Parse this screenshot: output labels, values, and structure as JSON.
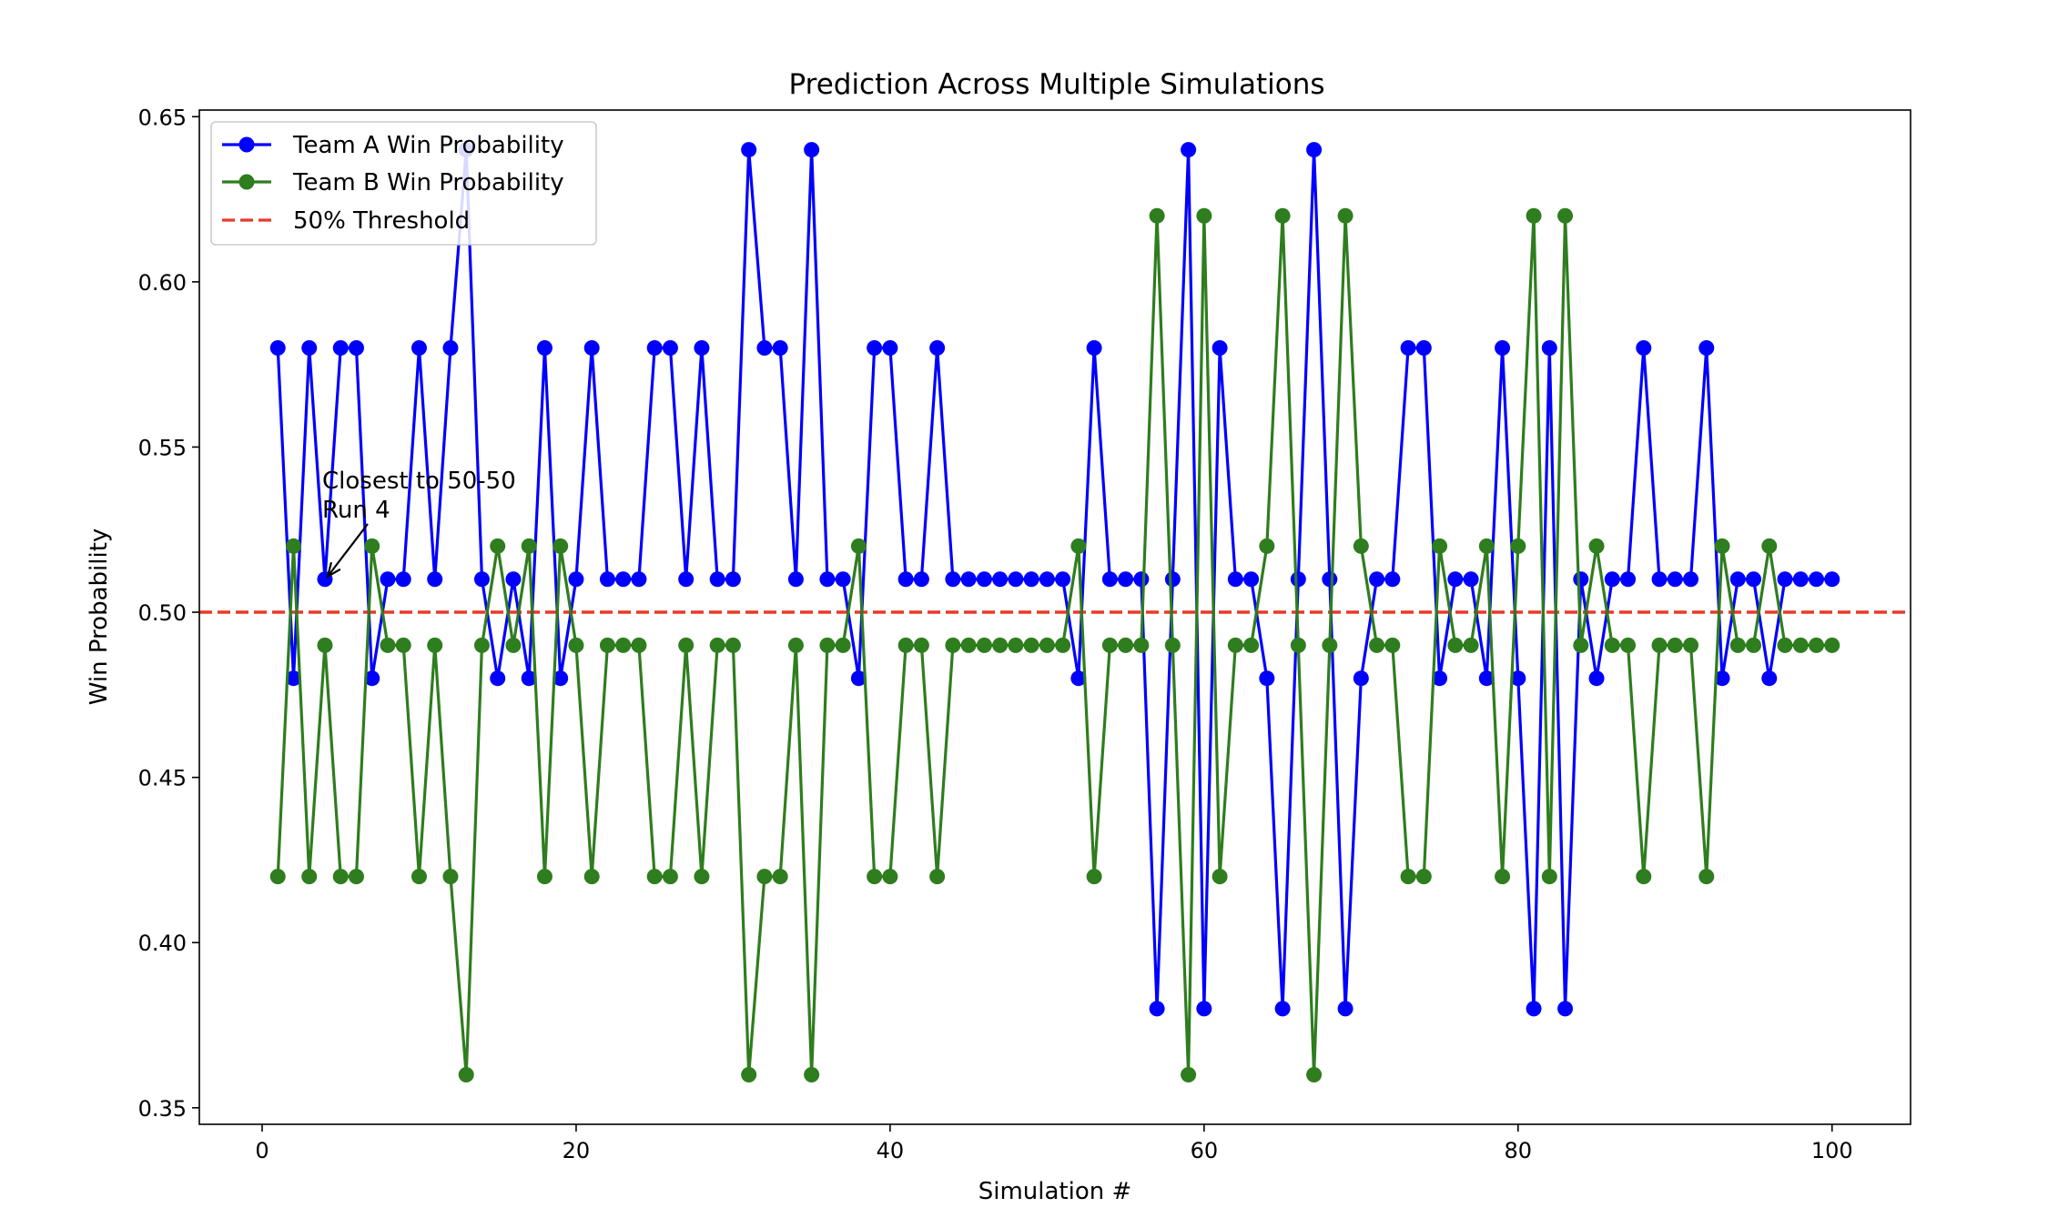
{
  "chart_data": {
    "type": "line",
    "title": "Prediction Across Multiple Simulations",
    "xlabel": "Simulation #",
    "ylabel": "Win Probability",
    "xlim": [
      -4,
      105
    ],
    "ylim": [
      0.345,
      0.652
    ],
    "xticks": [
      0,
      20,
      40,
      60,
      80,
      100
    ],
    "xtick_labels": [
      "0",
      "20",
      "40",
      "60",
      "80",
      "100"
    ],
    "yticks": [
      0.35,
      0.4,
      0.45,
      0.5,
      0.55,
      0.6,
      0.65
    ],
    "ytick_labels": [
      "0.35",
      "0.40",
      "0.45",
      "0.50",
      "0.55",
      "0.60",
      "0.65"
    ],
    "grid": false,
    "legend_position": "top-left",
    "x": [
      1,
      2,
      3,
      4,
      5,
      6,
      7,
      8,
      9,
      10,
      11,
      12,
      13,
      14,
      15,
      16,
      17,
      18,
      19,
      20,
      21,
      22,
      23,
      24,
      25,
      26,
      27,
      28,
      29,
      30,
      31,
      32,
      33,
      34,
      35,
      36,
      37,
      38,
      39,
      40,
      41,
      42,
      43,
      44,
      45,
      46,
      47,
      48,
      49,
      50,
      51,
      52,
      53,
      54,
      55,
      56,
      57,
      58,
      59,
      60,
      61,
      62,
      63,
      64,
      65,
      66,
      67,
      68,
      69,
      70,
      71,
      72,
      73,
      74,
      75,
      76,
      77,
      78,
      79,
      80,
      81,
      82,
      83,
      84,
      85,
      86,
      87,
      88,
      89,
      90,
      91,
      92,
      93,
      94,
      95,
      96,
      97,
      98,
      99,
      100
    ],
    "series": [
      {
        "name": "Team A Win Probability",
        "color": "#0000ff",
        "style": "solid-marker",
        "values": [
          0.58,
          0.48,
          0.58,
          0.51,
          0.58,
          0.58,
          0.48,
          0.51,
          0.51,
          0.58,
          0.51,
          0.58,
          0.64,
          0.51,
          0.48,
          0.51,
          0.48,
          0.58,
          0.48,
          0.51,
          0.58,
          0.51,
          0.51,
          0.51,
          0.58,
          0.58,
          0.51,
          0.58,
          0.51,
          0.51,
          0.64,
          0.58,
          0.58,
          0.51,
          0.64,
          0.51,
          0.51,
          0.48,
          0.58,
          0.58,
          0.51,
          0.51,
          0.58,
          0.51,
          0.51,
          0.51,
          0.51,
          0.51,
          0.51,
          0.51,
          0.51,
          0.48,
          0.58,
          0.51,
          0.51,
          0.51,
          0.38,
          0.51,
          0.64,
          0.38,
          0.58,
          0.51,
          0.51,
          0.48,
          0.38,
          0.51,
          0.64,
          0.51,
          0.38,
          0.48,
          0.51,
          0.51,
          0.58,
          0.58,
          0.48,
          0.51,
          0.51,
          0.48,
          0.58,
          0.48,
          0.38,
          0.58,
          0.38,
          0.51,
          0.48,
          0.51,
          0.51,
          0.58,
          0.51,
          0.51,
          0.51,
          0.58,
          0.48,
          0.51,
          0.51,
          0.48,
          0.51,
          0.51,
          0.51,
          0.51
        ]
      },
      {
        "name": "Team B Win Probability",
        "color": "#2e7d1e",
        "style": "solid-marker",
        "values": [
          0.42,
          0.52,
          0.42,
          0.49,
          0.42,
          0.42,
          0.52,
          0.49,
          0.49,
          0.42,
          0.49,
          0.42,
          0.36,
          0.49,
          0.52,
          0.49,
          0.52,
          0.42,
          0.52,
          0.49,
          0.42,
          0.49,
          0.49,
          0.49,
          0.42,
          0.42,
          0.49,
          0.42,
          0.49,
          0.49,
          0.36,
          0.42,
          0.42,
          0.49,
          0.36,
          0.49,
          0.49,
          0.52,
          0.42,
          0.42,
          0.49,
          0.49,
          0.42,
          0.49,
          0.49,
          0.49,
          0.49,
          0.49,
          0.49,
          0.49,
          0.49,
          0.52,
          0.42,
          0.49,
          0.49,
          0.49,
          0.62,
          0.49,
          0.36,
          0.62,
          0.42,
          0.49,
          0.49,
          0.52,
          0.62,
          0.49,
          0.36,
          0.49,
          0.62,
          0.52,
          0.49,
          0.49,
          0.42,
          0.42,
          0.52,
          0.49,
          0.49,
          0.52,
          0.42,
          0.52,
          0.62,
          0.42,
          0.62,
          0.49,
          0.52,
          0.49,
          0.49,
          0.42,
          0.49,
          0.49,
          0.49,
          0.42,
          0.52,
          0.49,
          0.49,
          0.52,
          0.49,
          0.49,
          0.49,
          0.49
        ]
      }
    ],
    "threshold": {
      "name": "50% Threshold",
      "value": 0.5,
      "color": "#e8392a",
      "style": "dashed"
    },
    "annotation": {
      "line1": "Closest to 50-50",
      "line2": "Run 4",
      "point_x": 4,
      "point_y": 0.51
    }
  }
}
